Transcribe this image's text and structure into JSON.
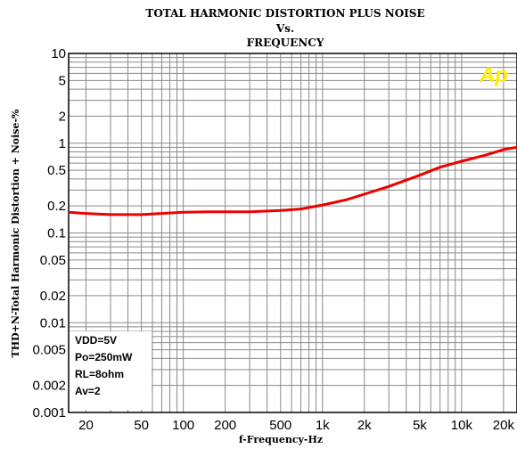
{
  "chart_data": {
    "type": "line",
    "title_lines": [
      "TOTAL HARMONIC DISTORTION PLUS NOISE",
      "Vs.",
      "FREQUENCY"
    ],
    "xlabel": "f-Frequency-Hz",
    "ylabel": "THD+N-Total Harmonic Distortion + Noise-%",
    "x_scale": "log",
    "y_scale": "log",
    "xlim": [
      15,
      25000
    ],
    "ylim": [
      0.001,
      10
    ],
    "grid": true,
    "x_ticks": [
      {
        "value": 20,
        "label": "20"
      },
      {
        "value": 50,
        "label": "50"
      },
      {
        "value": 100,
        "label": "100"
      },
      {
        "value": 200,
        "label": "200"
      },
      {
        "value": 500,
        "label": "500"
      },
      {
        "value": 1000,
        "label": "1k"
      },
      {
        "value": 2000,
        "label": "2k"
      },
      {
        "value": 5000,
        "label": "5k"
      },
      {
        "value": 10000,
        "label": "10k"
      },
      {
        "value": 20000,
        "label": "20k"
      }
    ],
    "y_ticks": [
      {
        "value": 10,
        "label": "10"
      },
      {
        "value": 5,
        "label": "5"
      },
      {
        "value": 2,
        "label": "2"
      },
      {
        "value": 1,
        "label": "1"
      },
      {
        "value": 0.5,
        "label": "0.5"
      },
      {
        "value": 0.2,
        "label": "0.2"
      },
      {
        "value": 0.1,
        "label": "0.1"
      },
      {
        "value": 0.05,
        "label": "0.05"
      },
      {
        "value": 0.02,
        "label": "0.02"
      },
      {
        "value": 0.01,
        "label": "0.01"
      },
      {
        "value": 0.005,
        "label": "0.005"
      },
      {
        "value": 0.002,
        "label": "0.002"
      },
      {
        "value": 0.001,
        "label": "0.001"
      }
    ],
    "series": [
      {
        "color": "#ee0000",
        "x": [
          15,
          20,
          30,
          50,
          70,
          100,
          150,
          200,
          300,
          500,
          700,
          1000,
          1500,
          2000,
          3000,
          5000,
          7000,
          10000,
          15000,
          20000,
          25000
        ],
        "y": [
          0.17,
          0.165,
          0.16,
          0.16,
          0.165,
          0.17,
          0.172,
          0.172,
          0.172,
          0.178,
          0.185,
          0.205,
          0.235,
          0.27,
          0.33,
          0.44,
          0.54,
          0.63,
          0.74,
          0.85,
          0.9
        ]
      }
    ],
    "annotations": [
      "VDD=5V",
      "Po=250mW",
      "RL=8ohm",
      "Av=2"
    ],
    "logo": "Ap",
    "colors": {
      "background": "#ffffff",
      "grid": "#8a8a8a",
      "axis": "#000000",
      "curve": "#ee0000",
      "logo": "#ffee00"
    }
  }
}
